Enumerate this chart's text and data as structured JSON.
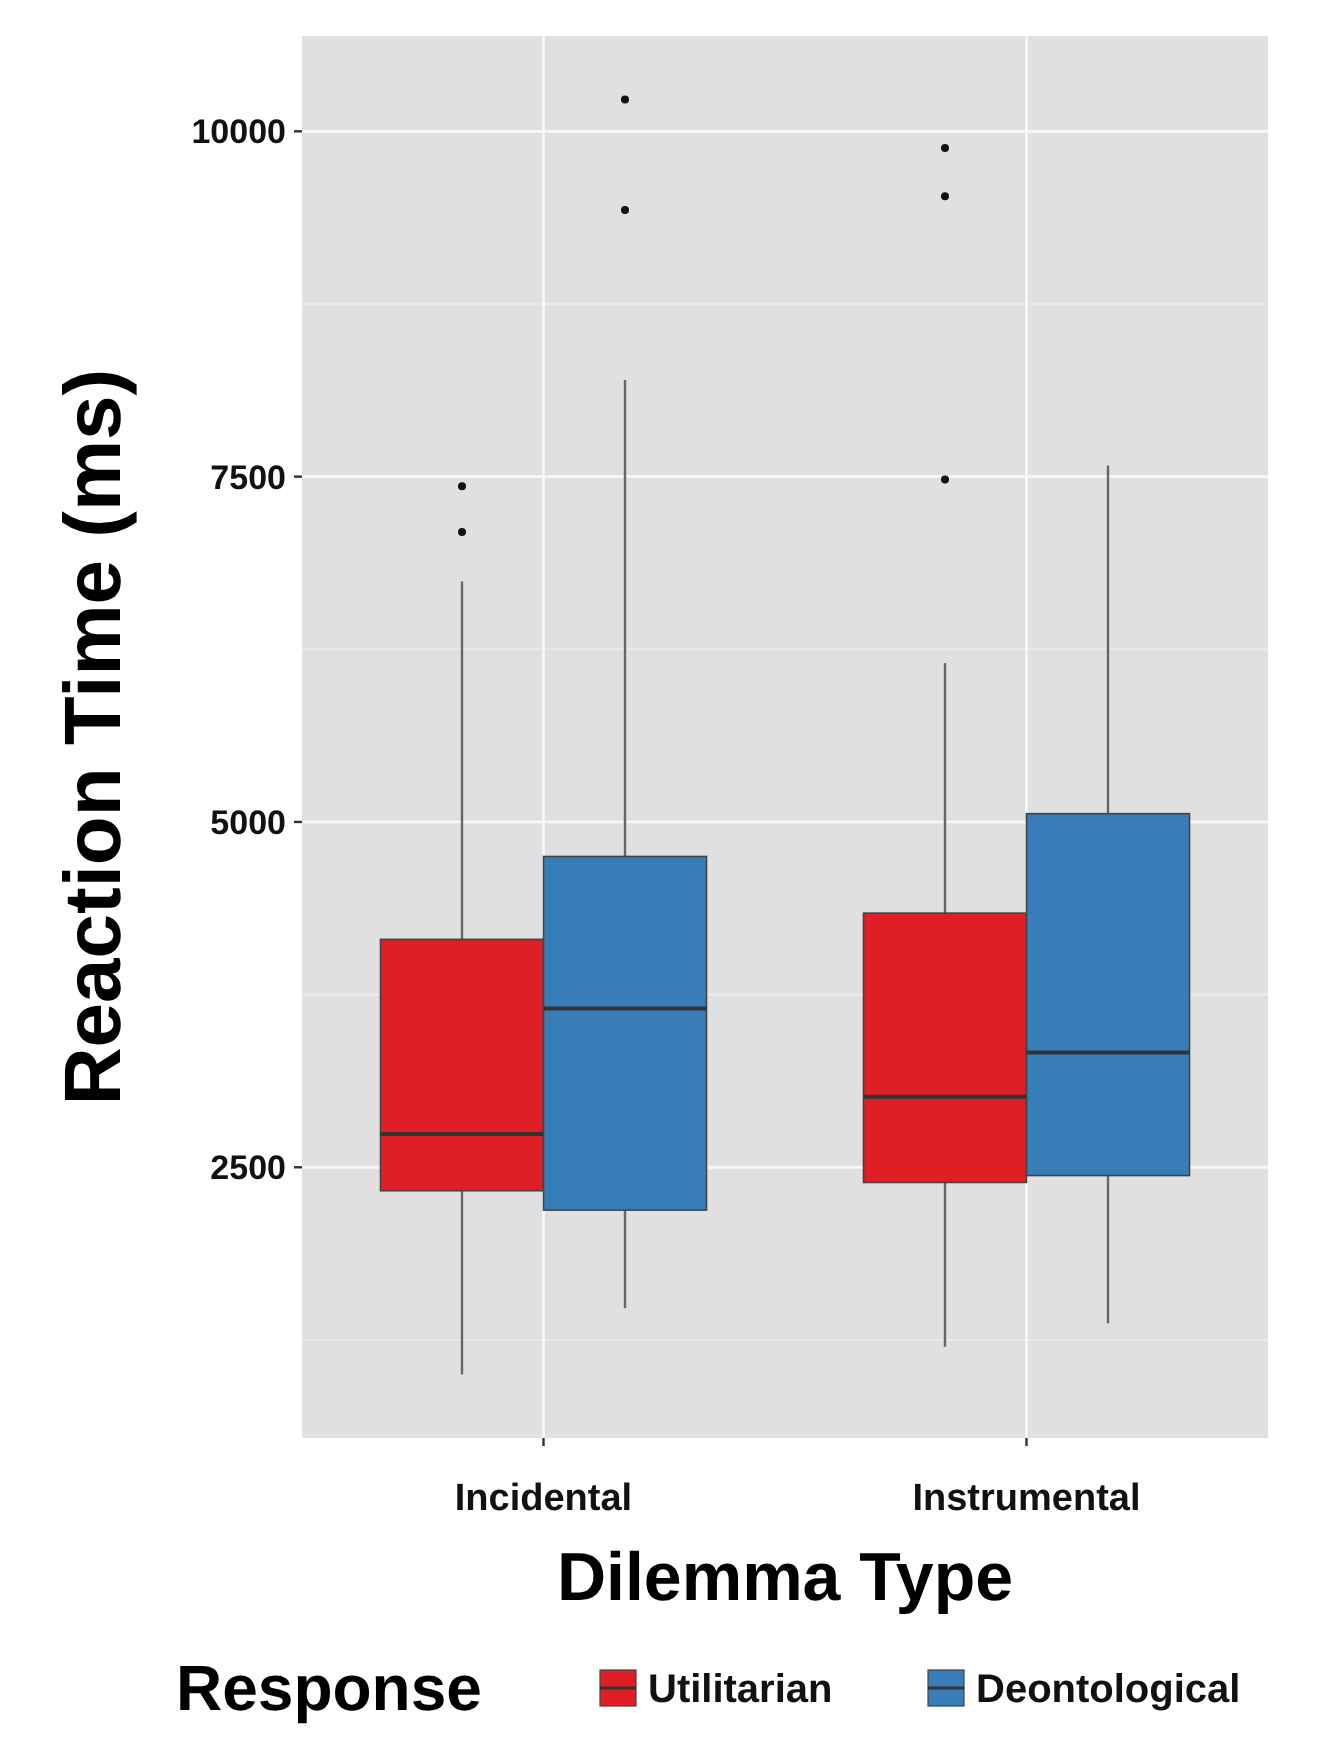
{
  "chart_data": {
    "type": "box",
    "xlabel": "Dilemma Type",
    "ylabel": "Reaction Time (ms)",
    "legend_title": "Response",
    "legend": "bottom",
    "grid": true,
    "categories": [
      "Incidental",
      "Instrumental"
    ],
    "ylim": [
      540,
      10690
    ],
    "yticks": [
      2500,
      5000,
      7500,
      10000
    ],
    "series": [
      {
        "name": "Utilitarian",
        "color": "#de1f26",
        "boxes": [
          {
            "low": 1000,
            "q1": 2330,
            "median": 2740,
            "q3": 4150,
            "high": 6740,
            "outliers": [
              7430,
              7100
            ]
          },
          {
            "low": 1200,
            "q1": 2390,
            "median": 3010,
            "q3": 4340,
            "high": 6150,
            "outliers": [
              9880,
              9530,
              7480
            ]
          }
        ]
      },
      {
        "name": "Deontological",
        "color": "#377db8",
        "boxes": [
          {
            "low": 1480,
            "q1": 2190,
            "median": 3650,
            "q3": 4750,
            "high": 8200,
            "outliers": [
              10230,
              9430
            ]
          },
          {
            "low": 1370,
            "q1": 2440,
            "median": 3330,
            "q3": 5060,
            "high": 7580
          }
        ]
      }
    ]
  }
}
